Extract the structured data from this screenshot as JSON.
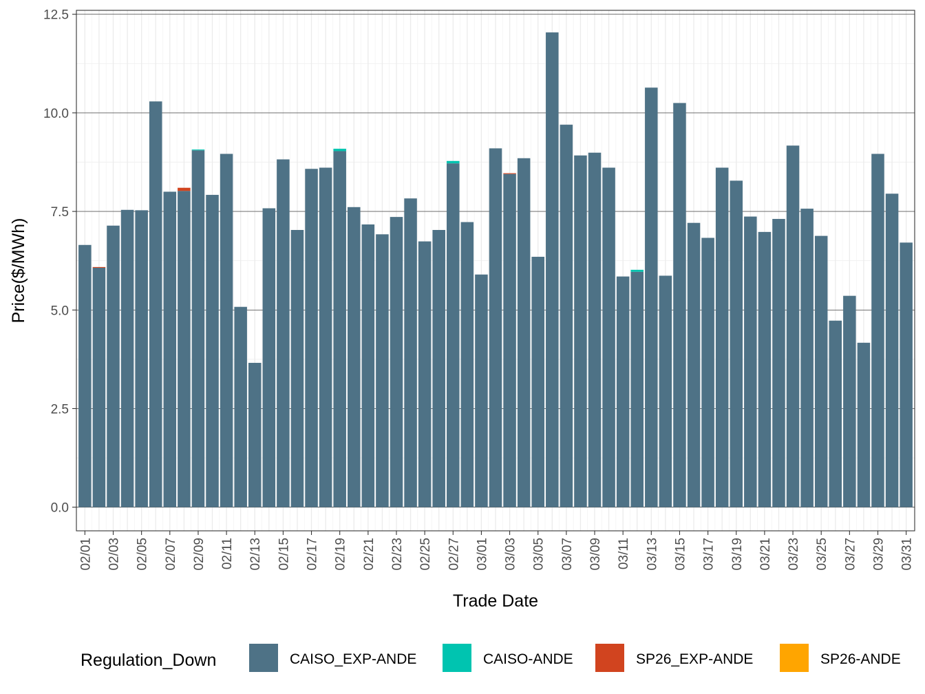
{
  "chart_data": {
    "type": "bar",
    "title": "",
    "xlabel": "Trade Date",
    "ylabel": "Price($/MWh)",
    "ylim": [
      -0.6,
      12.6
    ],
    "yticks": [
      0.0,
      2.5,
      5.0,
      7.5,
      10.0,
      12.5
    ],
    "ytick_labels": [
      "0.0",
      "2.5",
      "5.0",
      "7.5",
      "10.0",
      "12.5"
    ],
    "grid": true,
    "legend_position": "bottom",
    "categories": [
      "02/01",
      "02/02",
      "02/03",
      "02/04",
      "02/05",
      "02/06",
      "02/07",
      "02/08",
      "02/09",
      "02/10",
      "02/11",
      "02/12",
      "02/13",
      "02/14",
      "02/15",
      "02/16",
      "02/17",
      "02/18",
      "02/19",
      "02/20",
      "02/21",
      "02/22",
      "02/23",
      "02/24",
      "02/25",
      "02/26",
      "02/27",
      "02/28",
      "03/01",
      "03/02",
      "03/03",
      "03/04",
      "03/05",
      "03/06",
      "03/07",
      "03/08",
      "03/09",
      "03/10",
      "03/11",
      "03/12",
      "03/13",
      "03/14",
      "03/15",
      "03/16",
      "03/17",
      "03/18",
      "03/19",
      "03/20",
      "03/21",
      "03/22",
      "03/23",
      "03/24",
      "03/25",
      "03/26",
      "03/27",
      "03/28",
      "03/29",
      "03/30",
      "03/31"
    ],
    "xtick_labels": [
      "02/01",
      "02/03",
      "02/05",
      "02/07",
      "02/09",
      "02/11",
      "02/13",
      "02/15",
      "02/17",
      "02/19",
      "02/21",
      "02/23",
      "02/25",
      "02/27",
      "03/01",
      "03/03",
      "03/05",
      "03/07",
      "03/09",
      "03/11",
      "03/13",
      "03/15",
      "03/17",
      "03/19",
      "03/21",
      "03/23",
      "03/25",
      "03/27",
      "03/29",
      "03/31"
    ],
    "legend_title": "Regulation_Down",
    "series": [
      {
        "name": "CAISO_EXP-ANDE",
        "color": "#4e7286",
        "values": [
          6.65,
          6.07,
          7.14,
          7.54,
          7.53,
          10.29,
          8.0,
          8.02,
          9.05,
          7.92,
          8.96,
          5.08,
          3.66,
          7.58,
          8.82,
          7.03,
          8.58,
          8.61,
          9.03,
          7.61,
          7.17,
          6.92,
          7.36,
          7.83,
          6.74,
          7.03,
          8.72,
          7.23,
          5.9,
          9.1,
          8.45,
          8.85,
          6.35,
          12.04,
          9.7,
          8.92,
          8.99,
          8.61,
          5.85,
          5.97,
          10.64,
          5.87,
          10.25,
          7.21,
          6.83,
          8.61,
          8.28,
          7.37,
          6.98,
          7.31,
          9.17,
          7.57,
          6.88,
          4.73,
          5.36,
          4.17,
          8.96,
          7.95,
          6.71
        ]
      },
      {
        "name": "CAISO-ANDE",
        "color": "#00c4b0",
        "values": [
          0,
          0,
          0,
          0,
          0,
          0,
          0,
          0,
          0.02,
          0,
          0,
          0,
          0,
          0,
          0,
          0,
          0,
          0,
          0.06,
          0,
          0,
          0,
          0,
          0,
          0,
          0,
          0.06,
          0,
          0,
          0,
          0,
          0,
          0,
          0,
          0,
          0,
          0,
          0,
          0,
          0.05,
          0,
          0,
          0,
          0,
          0,
          0,
          0,
          0,
          0,
          0,
          0,
          0,
          0,
          0,
          0,
          0,
          0,
          0,
          0
        ]
      },
      {
        "name": "SP26_EXP-ANDE",
        "color": "#d1441f",
        "values": [
          0,
          0.02,
          0,
          0,
          0,
          0,
          0,
          0.08,
          0,
          0,
          0,
          0,
          0,
          0,
          0,
          0,
          0,
          0,
          0,
          0,
          0,
          0,
          0,
          0,
          0,
          0,
          0,
          0,
          0,
          0,
          0.02,
          0,
          0,
          0,
          0,
          0,
          0,
          0,
          0,
          0,
          0,
          0,
          0,
          0,
          0,
          0,
          0,
          0,
          0,
          0,
          0,
          0,
          0,
          0,
          0,
          0,
          0,
          0,
          0
        ]
      },
      {
        "name": "SP26-ANDE",
        "color": "#ffa500",
        "values": [
          0,
          0,
          0,
          0,
          0,
          0,
          0,
          0,
          0,
          0,
          0,
          0,
          0,
          0,
          0,
          0,
          0,
          0,
          0,
          0,
          0,
          0,
          0,
          0,
          0,
          0,
          0,
          0,
          0,
          0,
          0,
          0,
          0,
          0,
          0,
          0,
          0,
          0,
          0,
          0,
          0,
          0,
          0,
          0,
          0,
          0,
          0,
          0,
          0,
          0,
          0,
          0,
          0,
          0,
          0,
          0,
          0,
          0,
          0
        ]
      }
    ]
  }
}
